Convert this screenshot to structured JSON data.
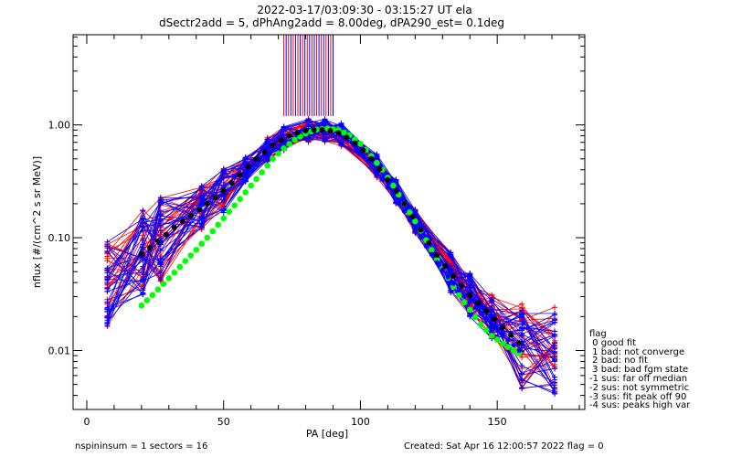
{
  "header": {
    "title": "2022-03-17/03:09:30 - 03:15:27 UT ela",
    "subtitle": "dSectr2add = 5, dPhAng2add = 8.00deg, dPA290_est=    0.1deg"
  },
  "legend": {
    "title": "flag",
    "items": [
      " 0 good fit",
      " 1 bad: not converge",
      " 2 bad: no fit",
      " 3 bad: bad fgm state",
      "-1 sus: far off median",
      "-2 sus: not symmetric",
      "-3 sus: fit peak off 90",
      "-4 sus: peaks high var"
    ]
  },
  "footer": {
    "left": "nspininsum =  1  sectors = 16",
    "right": "Created: Sat Apr 16 12:00:57 2022   flag = 0"
  },
  "colors": {
    "red_series": "#ff0000",
    "blue_series": "#0000ff",
    "median_black": "#000000",
    "fit_green": "#00ff00"
  },
  "chart_data": {
    "type": "line",
    "xlabel": "PA [deg]",
    "ylabel": "nflux [#/(cm^2 s sr MeV)]",
    "xlim": [
      -5,
      182
    ],
    "ylim": [
      0.003,
      6.3
    ],
    "yscale": "log",
    "xticks": [
      0,
      50,
      100,
      150
    ],
    "yticks": [
      0.01,
      0.1,
      1.0
    ],
    "ytick_labels": [
      "0.01",
      "0.10",
      "1.00"
    ],
    "grid": false,
    "series_summary": [
      {
        "color": "red",
        "description_from_plot": "individual sector PA distributions (earlier half)"
      },
      {
        "color": "blue",
        "description_from_plot": "individual sector PA distributions (later half)"
      }
    ],
    "vertical_lines": {
      "x_range": [
        72,
        90
      ],
      "y_from": 1.2,
      "y_to": 6.3,
      "count_red": 10,
      "count_blue": 12
    },
    "median_black": {
      "x": [
        20,
        24,
        28,
        32,
        36,
        40,
        44,
        48,
        52,
        56,
        60,
        64,
        68,
        72,
        76,
        80,
        84,
        88,
        92,
        96,
        100,
        104,
        108,
        112,
        116,
        120,
        124,
        128,
        132,
        136,
        140,
        144,
        148,
        152,
        156,
        159
      ],
      "y": [
        0.072,
        0.085,
        0.102,
        0.123,
        0.145,
        0.17,
        0.2,
        0.237,
        0.29,
        0.36,
        0.45,
        0.55,
        0.66,
        0.76,
        0.84,
        0.89,
        0.91,
        0.9,
        0.85,
        0.75,
        0.63,
        0.5,
        0.38,
        0.28,
        0.2,
        0.14,
        0.098,
        0.07,
        0.052,
        0.04,
        0.031,
        0.025,
        0.02,
        0.016,
        0.013,
        0.011
      ]
    },
    "fit_green": {
      "x": [
        20,
        24,
        28,
        32,
        36,
        40,
        44,
        48,
        52,
        56,
        60,
        64,
        68,
        72,
        76,
        80,
        84,
        88,
        92,
        96,
        100,
        104,
        108,
        112,
        116,
        120,
        124,
        128,
        132,
        136,
        140,
        144,
        148,
        152,
        156,
        159
      ],
      "y": [
        0.025,
        0.031,
        0.039,
        0.049,
        0.062,
        0.078,
        0.1,
        0.13,
        0.17,
        0.22,
        0.29,
        0.38,
        0.5,
        0.62,
        0.74,
        0.84,
        0.91,
        0.93,
        0.9,
        0.81,
        0.68,
        0.53,
        0.4,
        0.29,
        0.2,
        0.14,
        0.095,
        0.064,
        0.044,
        0.031,
        0.023,
        0.017,
        0.0135,
        0.0115,
        0.01,
        0.0092
      ]
    },
    "green_point_x": [
      20,
      22,
      24,
      26,
      28,
      30,
      32,
      34,
      36,
      38,
      40,
      42,
      44,
      46,
      48,
      50,
      52,
      54,
      56,
      58,
      60,
      62,
      64,
      66,
      68,
      70,
      72,
      74,
      76,
      78,
      80,
      82,
      84,
      86,
      88,
      90,
      92,
      94,
      96,
      98,
      100,
      102,
      104,
      106,
      108,
      110,
      112,
      114,
      116,
      118,
      120,
      122,
      124,
      126,
      128,
      130,
      132,
      134,
      136,
      138,
      140,
      142,
      144,
      146,
      148,
      150,
      152,
      154,
      156,
      158
    ],
    "black_point_x": [
      20,
      23,
      26,
      29,
      32,
      35,
      38,
      41,
      44,
      47,
      50,
      53,
      56,
      59,
      62,
      65,
      68,
      71,
      74,
      77,
      80,
      83,
      86,
      89,
      92,
      95,
      98,
      101,
      104,
      107,
      110,
      113,
      116,
      119,
      122,
      125,
      128,
      131,
      134,
      137,
      140,
      143,
      146,
      149,
      152,
      155,
      158
    ],
    "blue_point_x": [
      104,
      106,
      108,
      110,
      112,
      114,
      116,
      118,
      120,
      122,
      124,
      126,
      128,
      130,
      132,
      134,
      136,
      138,
      140,
      142,
      144,
      146,
      148,
      150,
      152,
      154,
      156,
      158
    ],
    "sector_x": [
      7.5,
      20.5,
      27,
      42,
      50,
      58,
      66,
      72,
      81,
      87,
      93,
      106,
      113,
      120,
      133,
      140,
      148,
      159,
      171
    ]
  }
}
